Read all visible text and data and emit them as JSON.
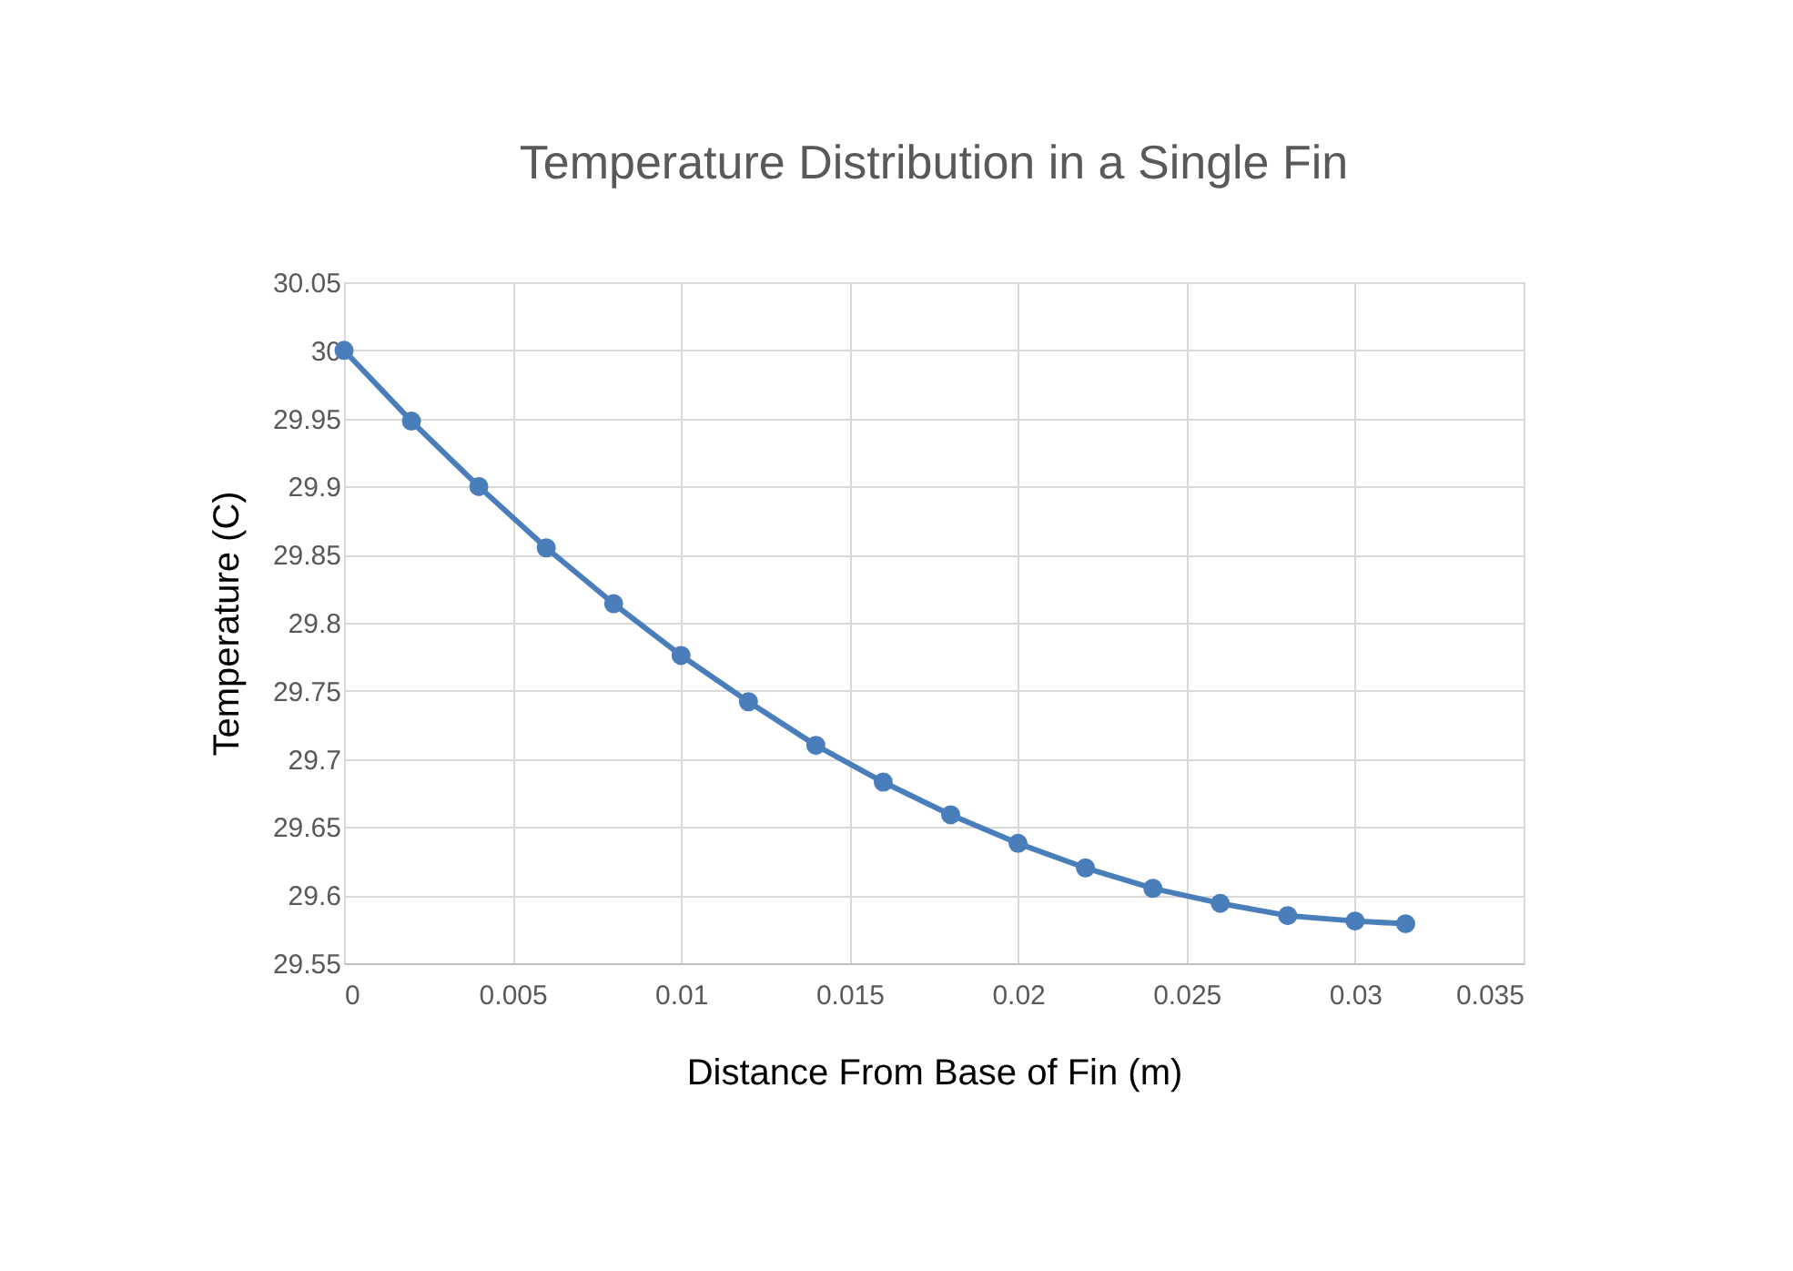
{
  "chart_data": {
    "type": "line",
    "title": "Temperature Distribution in a Single Fin",
    "xlabel": "Distance From Base of Fin (m)",
    "ylabel": "Temperature (C)",
    "x": [
      0,
      0.002,
      0.004,
      0.006,
      0.008,
      0.01,
      0.012,
      0.014,
      0.016,
      0.018,
      0.02,
      0.022,
      0.024,
      0.026,
      0.028,
      0.03,
      0.0315
    ],
    "series": [
      {
        "color": "#4a7ebb",
        "values": [
          30.0,
          29.948,
          29.9,
          29.855,
          29.814,
          29.776,
          29.742,
          29.71,
          29.683,
          29.659,
          29.638,
          29.62,
          29.605,
          29.594,
          29.585,
          29.581,
          29.579
        ]
      }
    ],
    "xlim": [
      0,
      0.035
    ],
    "xticks": [
      0,
      0.005,
      0.01,
      0.015,
      0.02,
      0.025,
      0.03,
      0.035
    ],
    "ylim": [
      29.55,
      30.05
    ],
    "yticks": [
      29.55,
      29.6,
      29.65,
      29.7,
      29.75,
      29.8,
      29.85,
      29.9,
      29.95,
      30,
      30.05
    ],
    "grid": true,
    "marker": "circle",
    "line_style": "solid"
  }
}
